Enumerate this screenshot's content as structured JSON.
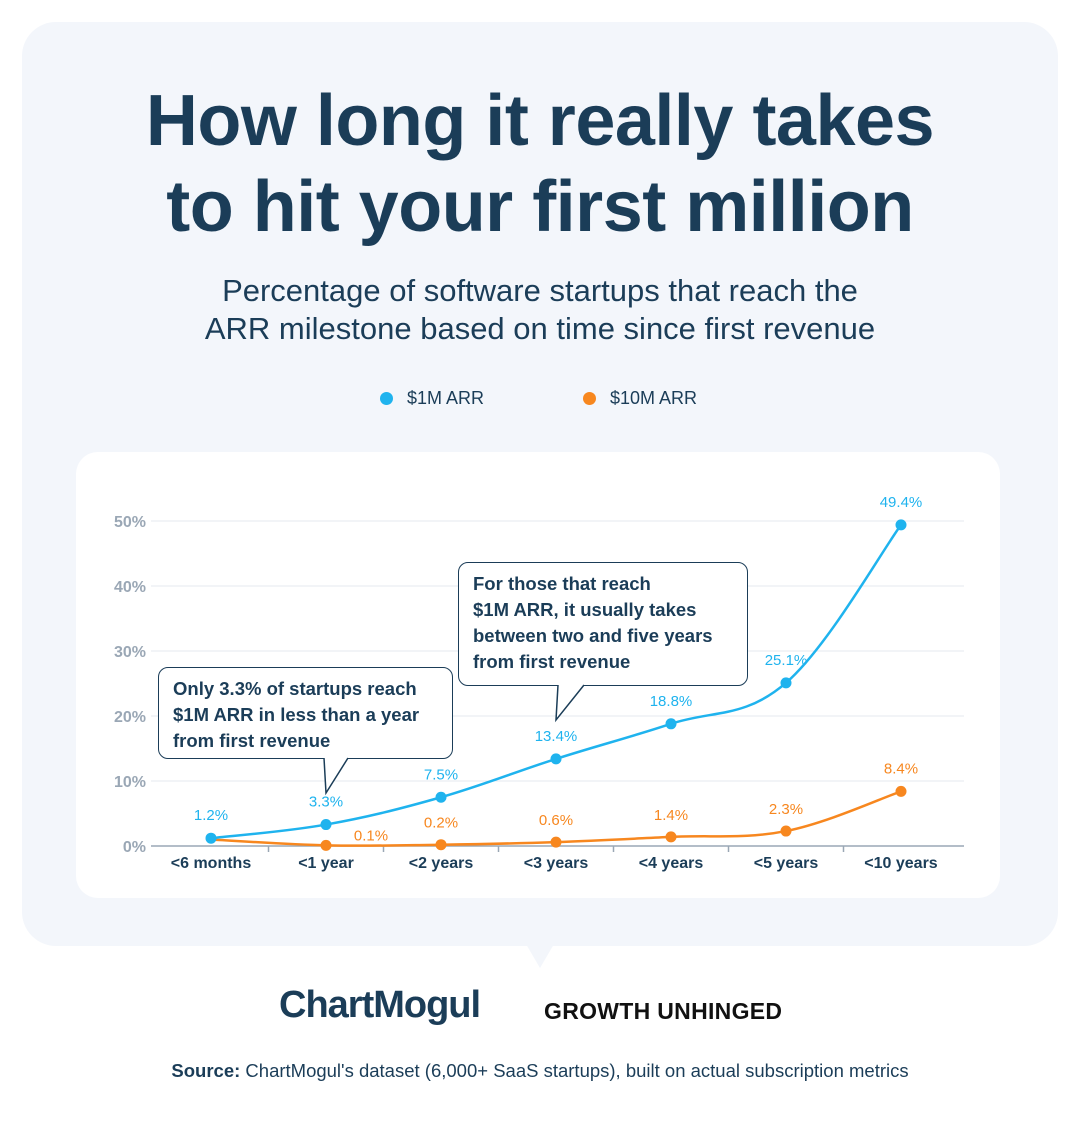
{
  "title_lines": [
    "How long it really takes",
    "to hit your first million"
  ],
  "subtitle_lines": [
    "Percentage of software startups that reach the",
    "ARR milestone based on time since first revenue"
  ],
  "colors": {
    "series1": "#1fb3ee",
    "series2": "#f7871f",
    "text": "#1b3d58",
    "axis": "#9aa7b5"
  },
  "chart_data": {
    "type": "line",
    "categories": [
      "<6 months",
      "<1 year",
      "<2 years",
      "<3 years",
      "<4 years",
      "<5 years",
      "<10 years"
    ],
    "series": [
      {
        "name": "$1M ARR",
        "values": [
          1.2,
          3.3,
          7.5,
          13.4,
          18.8,
          25.1,
          49.4
        ],
        "labels": [
          "1.2%",
          "3.3%",
          "7.5%",
          "13.4%",
          "18.8%",
          "25.1%",
          "49.4%"
        ]
      },
      {
        "name": "$10M ARR",
        "values": [
          1.0,
          0.1,
          0.2,
          0.6,
          1.4,
          2.3,
          8.4
        ],
        "labels": [
          "",
          "0.1%",
          "0.2%",
          "0.6%",
          "1.4%",
          "2.3%",
          "8.4%"
        ]
      }
    ],
    "y_ticks": [
      "0%",
      "10%",
      "20%",
      "30%",
      "40%",
      "50%"
    ],
    "ylim": [
      0,
      50
    ],
    "grid": true,
    "legend_position": "top-center"
  },
  "callouts": [
    {
      "lines": [
        "Only 3.3% of startups reach",
        "$1M ARR in less than a year",
        "from first revenue"
      ]
    },
    {
      "lines": [
        "For those that reach",
        "$1M ARR, it usually takes",
        "between two and five years",
        "from first revenue"
      ]
    }
  ],
  "logos": {
    "chartmogul": "ChartMogul",
    "growth_unhinged": "GROWTH UNHINGED"
  },
  "source": {
    "label": "Source:",
    "text": " ChartMogul's dataset (6,000+ SaaS startups), built on actual subscription metrics"
  }
}
